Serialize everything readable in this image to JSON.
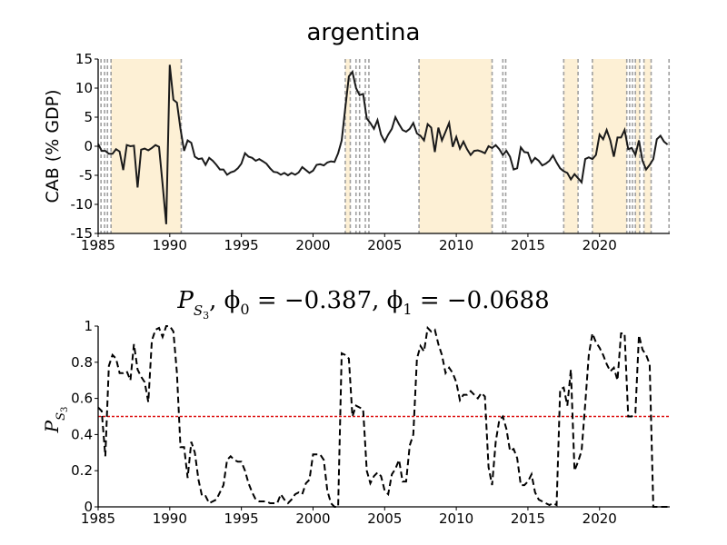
{
  "chart_data": [
    {
      "type": "line",
      "title": "argentina",
      "xlabel": "",
      "ylabel": "CAB (% GDP)",
      "xlim": [
        1985,
        2024.9
      ],
      "ylim": [
        -15,
        15
      ],
      "xticks": [
        1985,
        1990,
        1995,
        2000,
        2005,
        2010,
        2015,
        2020
      ],
      "yticks": [
        -15,
        -10,
        -5,
        0,
        5,
        10,
        15
      ],
      "grid": false,
      "line_color": "#1a1a1a",
      "shade_color": "#fdf0d5",
      "dashed_line_color": "#a0a0a0",
      "shaded_regions": [
        [
          1985.9,
          1990.8
        ],
        [
          2002.25,
          2002.6
        ],
        [
          2007.4,
          2012.5
        ],
        [
          2017.5,
          2018.5
        ],
        [
          2019.5,
          2021.9
        ],
        [
          2022.5,
          2022.8
        ],
        [
          2023.1,
          2023.6
        ]
      ],
      "dashed_lines": [
        1985.2,
        1985.45,
        1985.65,
        1985.9,
        1990.8,
        2002.25,
        2002.6,
        2003.0,
        2003.25,
        2003.65,
        2003.9,
        2007.4,
        2012.5,
        2013.25,
        2013.45,
        2017.5,
        2018.5,
        2019.5,
        2021.9,
        2022.1,
        2022.3,
        2022.5,
        2022.8,
        2023.1,
        2023.6,
        2024.85
      ],
      "series": [
        {
          "x": [
            1985.0,
            1985.25,
            1985.5,
            1985.75,
            1986.0,
            1986.25,
            1986.5,
            1986.75,
            1987.0,
            1987.25,
            1987.5,
            1987.75,
            1988.0,
            1988.25,
            1988.5,
            1988.75,
            1989.0,
            1989.25,
            1989.5,
            1989.75,
            1990.0,
            1990.25,
            1990.5,
            1990.75,
            1991.0,
            1991.25,
            1991.5,
            1991.75,
            1992.0,
            1992.25,
            1992.5,
            1992.75,
            1993.0,
            1993.25,
            1993.5,
            1993.75,
            1994.0,
            1994.25,
            1994.5,
            1994.75,
            1995.0,
            1995.25,
            1995.5,
            1995.75,
            1996.0,
            1996.25,
            1996.5,
            1996.75,
            1997.0,
            1997.25,
            1997.5,
            1997.75,
            1998.0,
            1998.25,
            1998.5,
            1998.75,
            1999.0,
            1999.25,
            1999.5,
            1999.75,
            2000.0,
            2000.25,
            2000.5,
            2000.75,
            2001.0,
            2001.25,
            2001.5,
            2001.75,
            2002.0,
            2002.25,
            2002.5,
            2002.75,
            2003.0,
            2003.25,
            2003.5,
            2003.75,
            2004.0,
            2004.25,
            2004.5,
            2004.75,
            2005.0,
            2005.25,
            2005.5,
            2005.75,
            2006.0,
            2006.25,
            2006.5,
            2006.75,
            2007.0,
            2007.25,
            2007.5,
            2007.75,
            2008.0,
            2008.25,
            2008.5,
            2008.75,
            2009.0,
            2009.25,
            2009.5,
            2009.75,
            2010.0,
            2010.25,
            2010.5,
            2010.75,
            2011.0,
            2011.25,
            2011.5,
            2011.75,
            2012.0,
            2012.25,
            2012.5,
            2012.75,
            2013.0,
            2013.25,
            2013.5,
            2013.75,
            2014.0,
            2014.25,
            2014.5,
            2014.75,
            2015.0,
            2015.25,
            2015.5,
            2015.75,
            2016.0,
            2016.25,
            2016.5,
            2016.75,
            2017.0,
            2017.25,
            2017.5,
            2017.75,
            2018.0,
            2018.25,
            2018.5,
            2018.75,
            2019.0,
            2019.25,
            2019.5,
            2019.75,
            2020.0,
            2020.25,
            2020.5,
            2020.75,
            2021.0,
            2021.25,
            2021.5,
            2021.75,
            2022.0,
            2022.25,
            2022.5,
            2022.75,
            2023.0,
            2023.25,
            2023.5,
            2023.75,
            2024.0,
            2024.25,
            2024.5,
            2024.75
          ],
          "y": [
            0.4,
            -0.8,
            -0.8,
            -1.3,
            -1.3,
            -0.5,
            -0.9,
            -4.1,
            0.2,
            0.0,
            0.1,
            -7.1,
            -0.6,
            -0.4,
            -0.7,
            -0.3,
            0.2,
            -0.1,
            -6.5,
            -13.4,
            14.0,
            8.0,
            7.5,
            3.0,
            -0.8,
            1.0,
            0.6,
            -1.8,
            -2.2,
            -2.1,
            -3.2,
            -2.0,
            -2.5,
            -3.2,
            -4.0,
            -4.0,
            -4.9,
            -4.5,
            -4.3,
            -3.8,
            -3.0,
            -1.2,
            -1.8,
            -2.0,
            -2.5,
            -2.2,
            -2.6,
            -3.0,
            -3.8,
            -4.4,
            -4.5,
            -4.9,
            -4.6,
            -5.0,
            -4.6,
            -4.9,
            -4.5,
            -3.6,
            -4.1,
            -4.6,
            -4.2,
            -3.2,
            -3.1,
            -3.3,
            -2.8,
            -2.6,
            -2.7,
            -1.2,
            1.0,
            6.5,
            12.0,
            12.8,
            10.0,
            8.8,
            9.0,
            4.8,
            4.0,
            3.0,
            4.5,
            2.0,
            0.8,
            2.0,
            3.0,
            5.0,
            3.8,
            2.8,
            2.5,
            3.0,
            4.0,
            2.2,
            1.8,
            1.0,
            3.8,
            3.2,
            -1.0,
            3.2,
            1.0,
            2.5,
            4.0,
            -0.1,
            1.6,
            -0.4,
            0.8,
            -0.5,
            -1.5,
            -0.8,
            -0.7,
            -0.9,
            -1.2,
            0.0,
            -0.3,
            0.2,
            -0.5,
            -1.5,
            -0.8,
            -1.8,
            -4.0,
            -3.8,
            -0.2,
            -1.0,
            -1.1,
            -2.8,
            -2.0,
            -2.5,
            -3.3,
            -3.0,
            -2.5,
            -1.6,
            -2.8,
            -3.8,
            -4.3,
            -4.6,
            -5.7,
            -4.8,
            -5.5,
            -6.2,
            -2.2,
            -1.9,
            -2.2,
            -1.5,
            2.0,
            1.2,
            2.8,
            1.0,
            -1.8,
            1.5,
            1.5,
            2.8,
            -0.5,
            -0.3,
            -1.5,
            1.0,
            -2.5,
            -4.0,
            -3.2,
            -2.2,
            1.2,
            1.8,
            0.8,
            0.3
          ]
        }
      ]
    },
    {
      "type": "line",
      "title_parts": [
        "P",
        "S",
        "3",
        ", ϕ",
        "0",
        " = −0.387, ϕ",
        "1",
        " = −0.0688"
      ],
      "xlabel": "",
      "ylabel_parts": [
        "P",
        "S",
        "3"
      ],
      "xlim": [
        1985,
        2024.9
      ],
      "ylim": [
        0,
        1
      ],
      "xticks": [
        1985,
        1990,
        1995,
        2000,
        2005,
        2010,
        2015,
        2020
      ],
      "yticks": [
        0,
        0.2,
        0.4,
        0.6,
        0.8,
        1
      ],
      "grid": false,
      "line_color": "#000000",
      "line_style": "dashed",
      "threshold": 0.5,
      "threshold_color": "#dd1111",
      "series": [
        {
          "x": [
            1985.0,
            1985.25,
            1985.5,
            1985.75,
            1986.0,
            1986.25,
            1986.5,
            1986.75,
            1987.0,
            1987.25,
            1987.5,
            1987.75,
            1988.0,
            1988.25,
            1988.5,
            1988.75,
            1989.0,
            1989.25,
            1989.5,
            1989.75,
            1990.0,
            1990.25,
            1990.5,
            1990.75,
            1991.0,
            1991.25,
            1991.5,
            1991.75,
            1992.0,
            1992.25,
            1992.5,
            1992.75,
            1993.0,
            1993.25,
            1993.5,
            1993.75,
            1994.0,
            1994.25,
            1994.5,
            1994.75,
            1995.0,
            1995.25,
            1995.5,
            1995.75,
            1996.0,
            1996.25,
            1996.5,
            1996.75,
            1997.0,
            1997.25,
            1997.5,
            1997.75,
            1998.0,
            1998.25,
            1998.5,
            1998.75,
            1999.0,
            1999.25,
            1999.5,
            1999.75,
            2000.0,
            2000.25,
            2000.5,
            2000.75,
            2001.0,
            2001.25,
            2001.5,
            2001.75,
            2002.0,
            2002.25,
            2002.5,
            2002.75,
            2003.0,
            2003.25,
            2003.5,
            2003.75,
            2004.0,
            2004.25,
            2004.5,
            2004.75,
            2005.0,
            2005.25,
            2005.5,
            2005.75,
            2006.0,
            2006.25,
            2006.5,
            2006.75,
            2007.0,
            2007.25,
            2007.5,
            2007.75,
            2008.0,
            2008.25,
            2008.5,
            2008.75,
            2009.0,
            2009.25,
            2009.5,
            2009.75,
            2010.0,
            2010.25,
            2010.5,
            2010.75,
            2011.0,
            2011.25,
            2011.5,
            2011.75,
            2012.0,
            2012.25,
            2012.5,
            2012.75,
            2013.0,
            2013.25,
            2013.5,
            2013.75,
            2014.0,
            2014.25,
            2014.5,
            2014.75,
            2015.0,
            2015.25,
            2015.5,
            2015.75,
            2016.0,
            2016.25,
            2016.5,
            2016.75,
            2017.0,
            2017.25,
            2017.5,
            2017.75,
            2018.0,
            2018.25,
            2018.5,
            2018.75,
            2019.0,
            2019.25,
            2019.5,
            2019.75,
            2020.0,
            2020.25,
            2020.5,
            2020.75,
            2021.0,
            2021.25,
            2021.5,
            2021.75,
            2022.0,
            2022.25,
            2022.5,
            2022.75,
            2023.0,
            2023.25,
            2023.5,
            2023.75,
            2024.0,
            2024.25,
            2024.5,
            2024.75
          ],
          "y": [
            0.55,
            0.53,
            0.28,
            0.78,
            0.84,
            0.82,
            0.74,
            0.74,
            0.75,
            0.7,
            0.9,
            0.76,
            0.72,
            0.69,
            0.58,
            0.92,
            0.98,
            0.99,
            0.94,
            1.0,
            1.0,
            0.97,
            0.74,
            0.33,
            0.33,
            0.16,
            0.36,
            0.3,
            0.15,
            0.06,
            0.06,
            0.02,
            0.03,
            0.04,
            0.08,
            0.12,
            0.26,
            0.28,
            0.26,
            0.25,
            0.25,
            0.2,
            0.13,
            0.08,
            0.04,
            0.03,
            0.03,
            0.03,
            0.02,
            0.02,
            0.02,
            0.07,
            0.04,
            0.02,
            0.04,
            0.07,
            0.08,
            0.07,
            0.13,
            0.15,
            0.29,
            0.29,
            0.29,
            0.26,
            0.09,
            0.02,
            0.0,
            0.0,
            0.85,
            0.84,
            0.82,
            0.5,
            0.56,
            0.55,
            0.54,
            0.2,
            0.13,
            0.17,
            0.19,
            0.17,
            0.09,
            0.07,
            0.18,
            0.21,
            0.26,
            0.14,
            0.14,
            0.34,
            0.4,
            0.82,
            0.89,
            0.86,
            0.99,
            0.97,
            0.98,
            0.9,
            0.84,
            0.74,
            0.77,
            0.74,
            0.69,
            0.59,
            0.62,
            0.62,
            0.64,
            0.62,
            0.6,
            0.63,
            0.61,
            0.22,
            0.12,
            0.36,
            0.48,
            0.5,
            0.43,
            0.31,
            0.32,
            0.27,
            0.12,
            0.12,
            0.14,
            0.18,
            0.08,
            0.04,
            0.03,
            0.02,
            0.01,
            0.02,
            0.01,
            0.65,
            0.66,
            0.56,
            0.76,
            0.2,
            0.25,
            0.31,
            0.57,
            0.84,
            0.96,
            0.91,
            0.88,
            0.84,
            0.79,
            0.75,
            0.77,
            0.7,
            0.96,
            0.96,
            0.5,
            0.5,
            0.52,
            0.95,
            0.87,
            0.84,
            0.79,
            0.0,
            0.0,
            0.0,
            0.0,
            0.0
          ]
        }
      ]
    }
  ]
}
